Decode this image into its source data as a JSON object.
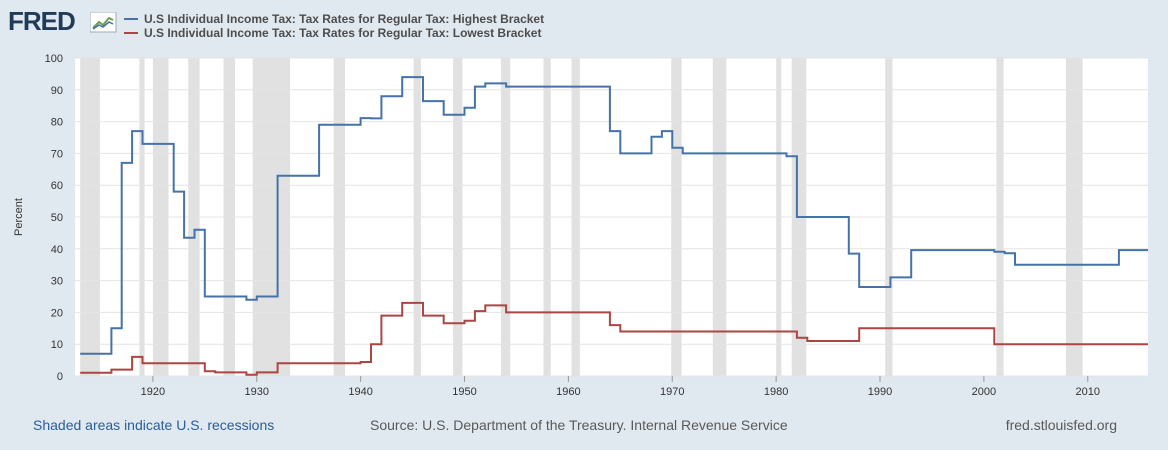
{
  "header": {
    "logo_text": "FRED"
  },
  "chart_data": {
    "type": "line",
    "series": [
      {
        "name": "U.S Individual Income Tax: Tax Rates for Regular Tax: Highest Bracket",
        "color": "#4572a7",
        "points": [
          [
            1913,
            7
          ],
          [
            1916,
            15
          ],
          [
            1917,
            67
          ],
          [
            1918,
            77
          ],
          [
            1919,
            73
          ],
          [
            1922,
            58
          ],
          [
            1923,
            43.5
          ],
          [
            1924,
            46
          ],
          [
            1925,
            25
          ],
          [
            1929,
            24
          ],
          [
            1930,
            25
          ],
          [
            1932,
            63
          ],
          [
            1936,
            79
          ],
          [
            1940,
            81.1
          ],
          [
            1941,
            81
          ],
          [
            1942,
            88
          ],
          [
            1944,
            94
          ],
          [
            1946,
            86.45
          ],
          [
            1948,
            82.13
          ],
          [
            1950,
            84.36
          ],
          [
            1951,
            91
          ],
          [
            1952,
            92
          ],
          [
            1954,
            91
          ],
          [
            1964,
            77
          ],
          [
            1965,
            70
          ],
          [
            1968,
            75.25
          ],
          [
            1969,
            77
          ],
          [
            1970,
            71.75
          ],
          [
            1971,
            70
          ],
          [
            1981,
            69.125
          ],
          [
            1982,
            50
          ],
          [
            1987,
            38.5
          ],
          [
            1988,
            28
          ],
          [
            1991,
            31
          ],
          [
            1993,
            39.6
          ],
          [
            2001,
            39.1
          ],
          [
            2002,
            38.6
          ],
          [
            2003,
            35
          ],
          [
            2013,
            39.6
          ],
          [
            2016,
            39.6
          ]
        ]
      },
      {
        "name": "U.S Individual Income Tax: Tax Rates for Regular Tax: Lowest Bracket",
        "color": "#aa4643",
        "points": [
          [
            1913,
            1
          ],
          [
            1916,
            2
          ],
          [
            1918,
            6
          ],
          [
            1919,
            4
          ],
          [
            1925,
            1.5
          ],
          [
            1926,
            1.125
          ],
          [
            1929,
            0.375
          ],
          [
            1930,
            1.125
          ],
          [
            1932,
            4
          ],
          [
            1940,
            4.4
          ],
          [
            1941,
            10
          ],
          [
            1942,
            19
          ],
          [
            1944,
            23
          ],
          [
            1946,
            19
          ],
          [
            1948,
            16.6
          ],
          [
            1950,
            17.4
          ],
          [
            1951,
            20.4
          ],
          [
            1952,
            22.2
          ],
          [
            1954,
            20
          ],
          [
            1964,
            16
          ],
          [
            1965,
            14
          ],
          [
            1982,
            12
          ],
          [
            1983,
            11
          ],
          [
            1987,
            11
          ],
          [
            1988,
            15
          ],
          [
            2001,
            10
          ],
          [
            2016,
            10
          ]
        ]
      }
    ],
    "xlim": [
      1912.5,
      2015.8
    ],
    "ylim": [
      0,
      100
    ],
    "yticks": [
      0,
      10,
      20,
      30,
      40,
      50,
      60,
      70,
      80,
      90,
      100
    ],
    "xticks": [
      1920,
      1930,
      1940,
      1950,
      1960,
      1970,
      1980,
      1990,
      2000,
      2010
    ],
    "ylabel": "Percent",
    "xlabel": "",
    "grid": true,
    "recessions": [
      [
        1913.0,
        1914.9
      ],
      [
        1918.7,
        1919.2
      ],
      [
        1920.0,
        1921.5
      ],
      [
        1923.4,
        1924.5
      ],
      [
        1926.8,
        1927.9
      ],
      [
        1929.6,
        1933.2
      ],
      [
        1937.4,
        1938.5
      ],
      [
        1945.1,
        1945.8
      ],
      [
        1948.9,
        1949.8
      ],
      [
        1953.5,
        1954.4
      ],
      [
        1957.6,
        1958.3
      ],
      [
        1960.3,
        1961.1
      ],
      [
        1969.9,
        1970.9
      ],
      [
        1973.9,
        1975.2
      ],
      [
        1980.0,
        1980.5
      ],
      [
        1981.5,
        1982.9
      ],
      [
        1990.5,
        1991.2
      ],
      [
        2001.2,
        2001.9
      ],
      [
        2007.9,
        2009.5
      ]
    ]
  },
  "footer": {
    "recession_note": "Shaded areas indicate U.S. recessions",
    "source": "Source: U.S. Department of the Treasury. Internal Revenue Service",
    "site": "fred.stlouisfed.org"
  }
}
